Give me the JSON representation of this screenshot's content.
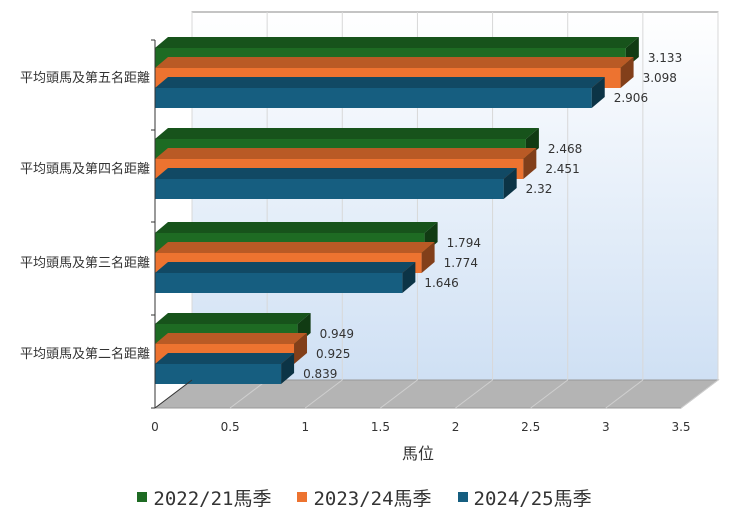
{
  "chart_data": {
    "type": "bar",
    "orientation": "horizontal",
    "style": "3d",
    "title": "",
    "xlabel": "馬位",
    "ylabel": "",
    "xlim": [
      0,
      3.5
    ],
    "xticks": [
      "0",
      "0.5",
      "1",
      "1.5",
      "2",
      "2.5",
      "3",
      "3.5"
    ],
    "categories": [
      "平均頭馬及第五名距離",
      "平均頭馬及第四名距離",
      "平均頭馬及第三名距離",
      "平均頭馬及第二名距離"
    ],
    "series": [
      {
        "name": "2022/21馬季",
        "color": "#1e6b23",
        "values": [
          3.133,
          2.468,
          1.794,
          0.949
        ],
        "labels": [
          "3.133",
          "2.468",
          "1.794",
          "0.949"
        ]
      },
      {
        "name": "2023/24馬季",
        "color": "#ed7330",
        "values": [
          3.098,
          2.451,
          1.774,
          0.925
        ],
        "labels": [
          "3.098",
          "2.451",
          "1.774",
          "0.925"
        ]
      },
      {
        "name": "2024/25馬季",
        "color": "#165e80",
        "values": [
          2.906,
          2.32,
          1.646,
          0.839
        ],
        "labels": [
          "2.906",
          "2.32",
          "1.646",
          "0.839"
        ]
      }
    ],
    "grid": true,
    "legend_position": "bottom"
  }
}
